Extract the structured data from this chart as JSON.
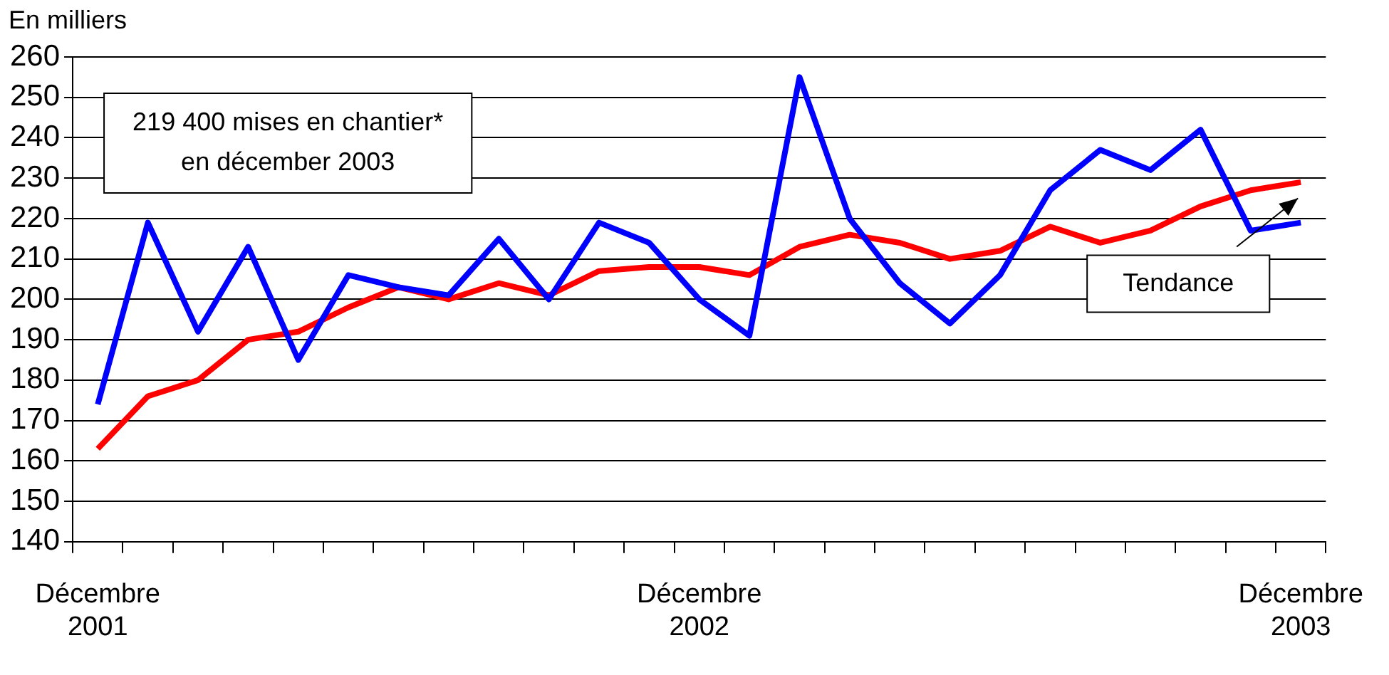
{
  "chart_data": {
    "type": "line",
    "ylabel": "En milliers",
    "categories": [
      "Décembre 2001",
      null,
      null,
      null,
      null,
      null,
      null,
      null,
      null,
      null,
      null,
      null,
      "Décembre 2002",
      null,
      null,
      null,
      null,
      null,
      null,
      null,
      null,
      null,
      null,
      null,
      "Décembre 2003"
    ],
    "series": [
      {
        "color": "#0000ff",
        "values": [
          174,
          219,
          192,
          213,
          185,
          206,
          203,
          201,
          215,
          200,
          219,
          214,
          200,
          191,
          255,
          220,
          204,
          194,
          206,
          227,
          237,
          232,
          242,
          217,
          219
        ]
      },
      {
        "color": "#ff0000",
        "values": [
          163,
          176,
          180,
          190,
          192,
          198,
          203,
          200,
          204,
          201,
          207,
          208,
          208,
          206,
          213,
          216,
          214,
          210,
          212,
          218,
          214,
          217,
          223,
          227,
          229
        ]
      }
    ],
    "ylim": [
      140,
      260
    ],
    "yticks": [
      140,
      150,
      160,
      170,
      180,
      190,
      200,
      210,
      220,
      230,
      240,
      250,
      260
    ],
    "grid": "y",
    "legend": false,
    "marker": "none",
    "line_style": "solid",
    "annotations": [
      "219 400 mises en chantier*\nen décember 2003",
      "Tendance"
    ]
  }
}
